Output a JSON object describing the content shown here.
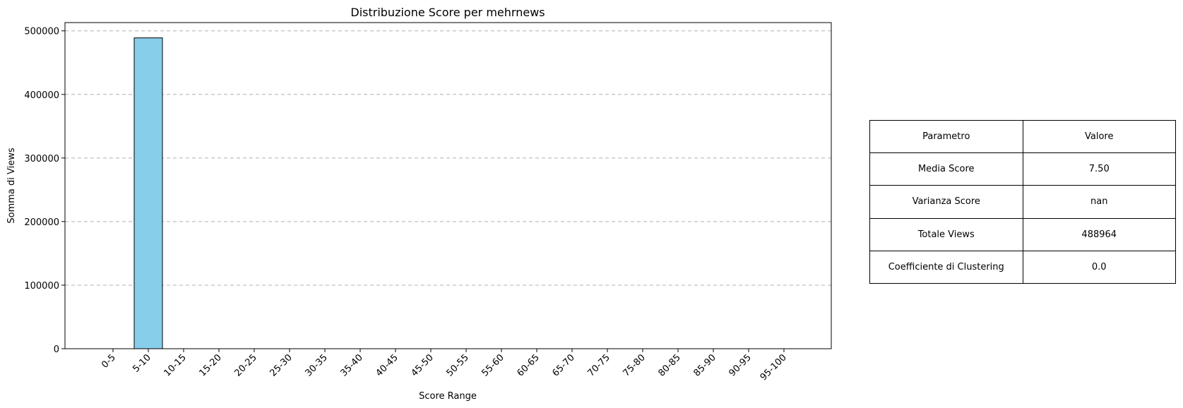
{
  "chart_data": {
    "type": "bar",
    "title": "Distribuzione Score per mehrnews",
    "xlabel": "Score Range",
    "ylabel": "Somma di Views",
    "categories": [
      "0-5",
      "5-10",
      "10-15",
      "15-20",
      "20-25",
      "25-30",
      "30-35",
      "35-40",
      "40-45",
      "45-50",
      "50-55",
      "55-60",
      "60-65",
      "65-70",
      "70-75",
      "75-80",
      "80-85",
      "85-90",
      "90-95",
      "95-100"
    ],
    "values": [
      0,
      488964,
      0,
      0,
      0,
      0,
      0,
      0,
      0,
      0,
      0,
      0,
      0,
      0,
      0,
      0,
      0,
      0,
      0,
      0
    ],
    "ylim": [
      0,
      513000
    ],
    "yticks": [
      0,
      100000,
      200000,
      300000,
      400000,
      500000
    ],
    "ytick_labels": [
      "0",
      "100000",
      "200000",
      "300000",
      "400000",
      "500000"
    ],
    "grid": "y-dashed",
    "bar_color": "#87CEEB",
    "edge_color": "#000000"
  },
  "table": {
    "header": [
      "Parametro",
      "Valore"
    ],
    "rows": [
      [
        "Media Score",
        "7.50"
      ],
      [
        "Varianza Score",
        "nan"
      ],
      [
        "Totale Views",
        "488964"
      ],
      [
        "Coefficiente di Clustering",
        "0.0"
      ]
    ]
  }
}
